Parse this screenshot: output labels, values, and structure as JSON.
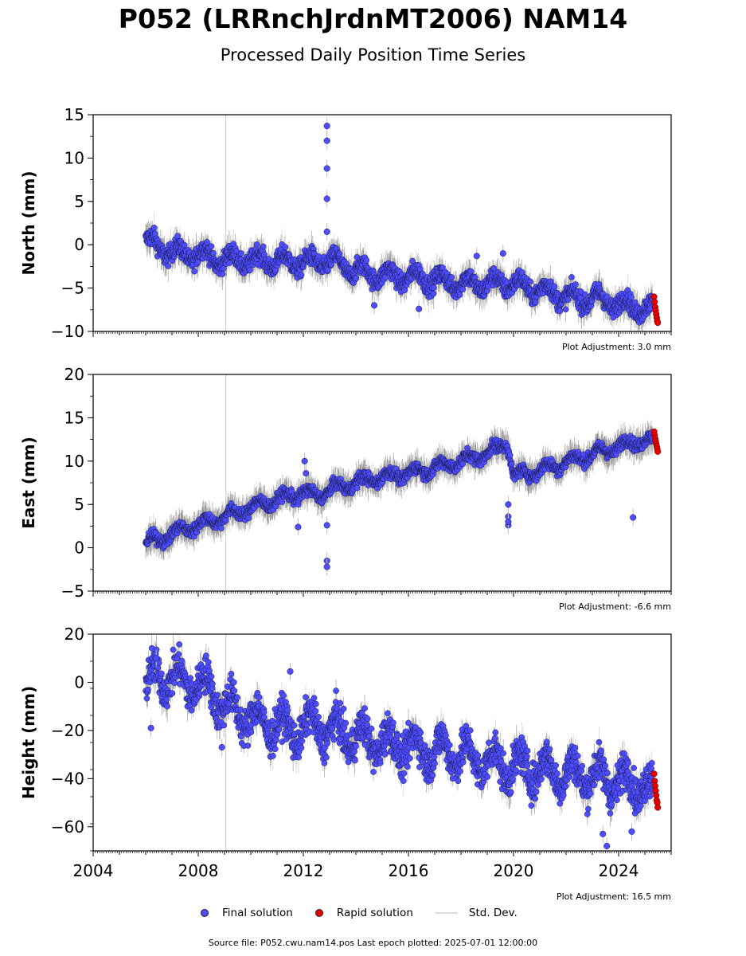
{
  "title": "P052 (LRRnchJrdnMT2006) NAM14",
  "subtitle": "Processed Daily Position Time Series",
  "legend": {
    "final": "Final solution",
    "rapid": "Rapid solution",
    "std": "Std. Dev."
  },
  "footer": "Source file: P052.cwu.nam14.pos  Last epoch plotted: 2025-07-01 12:00:00",
  "colors": {
    "final": "#4d4dff",
    "rapid": "#e60000",
    "std": "#9e9e9e",
    "event_line": "#d0d0d0"
  },
  "chart_data": [
    {
      "type": "scatter",
      "ylabel": "North (mm)",
      "ylim": [
        -10,
        15
      ],
      "xlim": [
        2004.0,
        2026.0
      ],
      "x_ticks": [
        "2004",
        "2008",
        "2012",
        "2016",
        "2020",
        "2024"
      ],
      "y_ticks": [
        "15",
        "10",
        "5",
        "0",
        "−5",
        "−10"
      ],
      "plot_adjustment": "Plot Adjustment: 3.0 mm",
      "event_lines_x": [
        2009.05
      ],
      "series": [
        {
          "name": "Final solution",
          "x": [
            2006.0,
            2006.5,
            2007.0,
            2007.5,
            2008.0,
            2008.5,
            2009.0,
            2009.5,
            2010.0,
            2010.5,
            2011.0,
            2011.5,
            2012.0,
            2012.5,
            2013.0,
            2013.5,
            2014.0,
            2014.5,
            2015.0,
            2015.5,
            2016.0,
            2016.5,
            2017.0,
            2017.5,
            2018.0,
            2018.5,
            2019.0,
            2019.5,
            2020.0,
            2020.5,
            2021.0,
            2021.5,
            2022.0,
            2022.5,
            2023.0,
            2023.5,
            2024.0,
            2024.5,
            2025.0,
            2025.3
          ],
          "y": [
            0.5,
            -0.3,
            -0.8,
            -1.2,
            -1.0,
            -1.5,
            -1.8,
            -1.6,
            -1.9,
            -1.7,
            -2.0,
            -1.9,
            -2.1,
            -2.0,
            -1.8,
            -2.4,
            -3.0,
            -3.2,
            -3.6,
            -3.5,
            -3.8,
            -3.7,
            -4.1,
            -4.2,
            -4.5,
            -4.4,
            -4.6,
            -4.3,
            -4.5,
            -4.9,
            -5.2,
            -5.5,
            -6.0,
            -6.3,
            -6.1,
            -6.5,
            -6.8,
            -7.1,
            -7.3,
            -7.6
          ],
          "amplitude": 1.4
        },
        {
          "name": "Final solution",
          "x": [
            2012.9,
            2012.9,
            2012.9,
            2012.9,
            2012.9,
            2014.7,
            2016.4,
            2019.6,
            2018.6
          ],
          "y": [
            13.7,
            12.0,
            8.8,
            5.3,
            1.5,
            -7.0,
            -7.4,
            -1.0,
            -1.3
          ],
          "outliers": true
        },
        {
          "name": "Rapid solution",
          "x": [
            2025.35,
            2025.37,
            2025.39,
            2025.41,
            2025.43,
            2025.45,
            2025.47,
            2025.49
          ],
          "y": [
            -6.0,
            -6.6,
            -7.2,
            -7.6,
            -8.0,
            -8.4,
            -8.8,
            -9.0
          ]
        }
      ]
    },
    {
      "type": "scatter",
      "ylabel": "East (mm)",
      "ylim": [
        -5,
        20
      ],
      "xlim": [
        2004.0,
        2026.0
      ],
      "x_ticks": [
        "2004",
        "2008",
        "2012",
        "2016",
        "2020",
        "2024"
      ],
      "y_ticks": [
        "20",
        "15",
        "10",
        "5",
        "0",
        "−5"
      ],
      "plot_adjustment": "Plot Adjustment: -6.6 mm",
      "event_lines_x": [
        2009.05
      ],
      "series": [
        {
          "name": "Final solution",
          "x": [
            2006.0,
            2006.5,
            2007.0,
            2007.5,
            2008.0,
            2008.5,
            2009.0,
            2009.5,
            2010.0,
            2010.5,
            2011.0,
            2011.5,
            2012.0,
            2012.5,
            2013.0,
            2013.5,
            2014.0,
            2014.5,
            2015.0,
            2015.5,
            2016.0,
            2016.5,
            2017.0,
            2017.5,
            2018.0,
            2018.5,
            2019.0,
            2019.5,
            2019.75,
            2020.0,
            2020.5,
            2021.0,
            2021.5,
            2022.0,
            2022.5,
            2023.0,
            2023.5,
            2024.0,
            2024.5,
            2025.0,
            2025.3
          ],
          "y": [
            0.5,
            1.0,
            1.6,
            2.2,
            2.6,
            3.1,
            3.6,
            4.1,
            4.6,
            5.1,
            5.5,
            6.0,
            6.4,
            6.0,
            6.7,
            7.1,
            7.5,
            7.9,
            8.1,
            8.4,
            8.6,
            8.9,
            9.2,
            9.6,
            10.0,
            10.4,
            10.9,
            11.6,
            12.5,
            8.2,
            8.6,
            8.9,
            9.4,
            9.9,
            10.3,
            10.8,
            11.2,
            11.7,
            12.1,
            12.4,
            12.3
          ],
          "amplitude": 0.9
        },
        {
          "name": "Final solution",
          "x": [
            2012.05,
            2012.1,
            2012.9,
            2012.9,
            2012.9,
            2011.8,
            2019.8,
            2019.8,
            2019.8,
            2019.8,
            2024.55
          ],
          "y": [
            10.0,
            8.6,
            2.6,
            -1.5,
            -2.2,
            2.4,
            5.0,
            3.6,
            2.6,
            3.0,
            3.5
          ],
          "outliers": true
        },
        {
          "name": "Rapid solution",
          "x": [
            2025.35,
            2025.37,
            2025.39,
            2025.41,
            2025.43,
            2025.45,
            2025.47,
            2025.49
          ],
          "y": [
            13.4,
            13.0,
            12.6,
            12.3,
            12.0,
            11.7,
            11.4,
            11.1
          ]
        }
      ]
    },
    {
      "type": "scatter",
      "ylabel": "Height (mm)",
      "ylim": [
        -70,
        20
      ],
      "xlim": [
        2004.0,
        2026.0
      ],
      "x_ticks": [
        "2004",
        "2008",
        "2012",
        "2016",
        "2020",
        "2024"
      ],
      "y_ticks": [
        "20",
        "0",
        "−20",
        "−40",
        "−60"
      ],
      "plot_adjustment": "Plot Adjustment: 16.5 mm",
      "event_lines_x": [
        2009.05
      ],
      "series": [
        {
          "name": "Final solution",
          "x": [
            2006.0,
            2006.5,
            2007.0,
            2007.5,
            2008.0,
            2008.5,
            2009.0,
            2009.5,
            2010.0,
            2010.5,
            2011.0,
            2011.5,
            2012.0,
            2012.5,
            2013.0,
            2013.5,
            2014.0,
            2014.5,
            2015.0,
            2015.5,
            2016.0,
            2016.5,
            2017.0,
            2017.5,
            2018.0,
            2018.5,
            2019.0,
            2019.5,
            2020.0,
            2020.5,
            2021.0,
            2021.5,
            2022.0,
            2022.5,
            2023.0,
            2023.5,
            2024.0,
            2024.5,
            2025.0,
            2025.3
          ],
          "y": [
            -2,
            3,
            2,
            0,
            -1,
            -3,
            -10,
            -12,
            -15,
            -17,
            -18,
            -20,
            -19,
            -18,
            -20,
            -21,
            -23,
            -24,
            -25,
            -26,
            -27,
            -28,
            -29,
            -28,
            -30,
            -32,
            -33,
            -34,
            -35,
            -36,
            -36,
            -37,
            -38,
            -38,
            -39,
            -40,
            -41,
            -42,
            -42,
            -45
          ],
          "amplitude": 10
        },
        {
          "name": "Final solution",
          "x": [
            2006.2,
            2006.4,
            2011.5,
            2023.4,
            2023.55,
            2024.5,
            2008.9
          ],
          "y": [
            -19,
            10,
            4.5,
            -63,
            -68,
            -62,
            -27
          ],
          "outliers": true
        },
        {
          "name": "Rapid solution",
          "x": [
            2025.35,
            2025.37,
            2025.39,
            2025.41,
            2025.43,
            2025.45,
            2025.47,
            2025.49
          ],
          "y": [
            -38,
            -41,
            -43,
            -45,
            -47,
            -49,
            -50,
            -52
          ]
        }
      ]
    }
  ]
}
